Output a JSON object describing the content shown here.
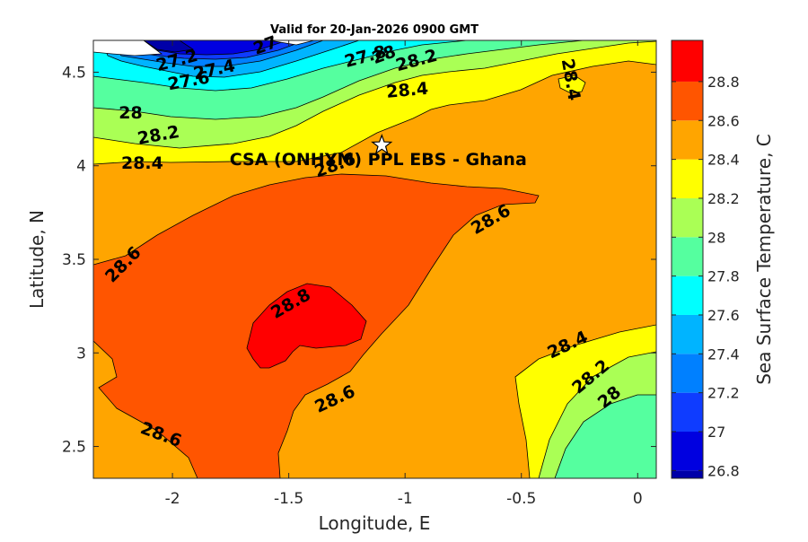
{
  "chart_data": {
    "type": "contour",
    "title": "Valid for 20-Jan-2026 0900 GMT",
    "xlabel": "Longitude, E",
    "ylabel": "Latitude, N",
    "xlim": [
      -2.34,
      0.08
    ],
    "ylim": [
      2.33,
      4.67
    ],
    "xticks": [
      "-2",
      "-1.5",
      "-1",
      "-0.5",
      "0"
    ],
    "yticks": [
      "2.5",
      "3",
      "3.5",
      "4",
      "4.5"
    ],
    "colorbar": {
      "label": "Sea Surface Temperature, C",
      "levels": [
        "26.8",
        "27",
        "27.2",
        "27.4",
        "27.6",
        "27.8",
        "28",
        "28.2",
        "28.4",
        "28.6",
        "28.8"
      ],
      "colors": [
        "#0000a8",
        "#0000e0",
        "#0f3cff",
        "#0080ff",
        "#00b4ff",
        "#00ffff",
        "#55ff9f",
        "#aaff55",
        "#ffff00",
        "#ffa500",
        "#ff5500",
        "#ff0000"
      ]
    },
    "contour_labels": [
      {
        "text": "27",
        "lon": -1.6,
        "lat": 4.64
      },
      {
        "text": "27.2",
        "lon": -1.98,
        "lat": 4.56
      },
      {
        "text": "27.4",
        "lon": -1.82,
        "lat": 4.51
      },
      {
        "text": "27.6",
        "lon": -1.93,
        "lat": 4.45
      },
      {
        "text": "27.8",
        "lon": -1.17,
        "lat": 4.58
      },
      {
        "text": "28",
        "lon": -1.09,
        "lat": 4.59
      },
      {
        "text": "28.2",
        "lon": -0.95,
        "lat": 4.56
      },
      {
        "text": "28.4",
        "lon": -0.29,
        "lat": 4.46
      },
      {
        "text": "28.4",
        "lon": -0.99,
        "lat": 4.4
      },
      {
        "text": "28",
        "lon": -2.18,
        "lat": 4.28
      },
      {
        "text": "28.2",
        "lon": -2.06,
        "lat": 4.16
      },
      {
        "text": "28.4",
        "lon": -2.13,
        "lat": 4.01
      },
      {
        "text": "28.6",
        "lon": -1.3,
        "lat": 4.0
      },
      {
        "text": "28.6",
        "lon": -0.63,
        "lat": 3.71
      },
      {
        "text": "28.6",
        "lon": -2.21,
        "lat": 3.47
      },
      {
        "text": "28.8",
        "lon": -1.49,
        "lat": 3.26
      },
      {
        "text": "28.4",
        "lon": -0.3,
        "lat": 3.04
      },
      {
        "text": "28.2",
        "lon": -0.2,
        "lat": 2.87
      },
      {
        "text": "28",
        "lon": -0.12,
        "lat": 2.76
      },
      {
        "text": "28.6",
        "lon": -1.3,
        "lat": 2.75
      },
      {
        "text": "28.6",
        "lon": -2.05,
        "lat": 2.56
      }
    ],
    "site": {
      "label": "CSA (ONHYM) PPL EBS  - Ghana",
      "lon": -1.1,
      "lat": 4.11
    }
  }
}
